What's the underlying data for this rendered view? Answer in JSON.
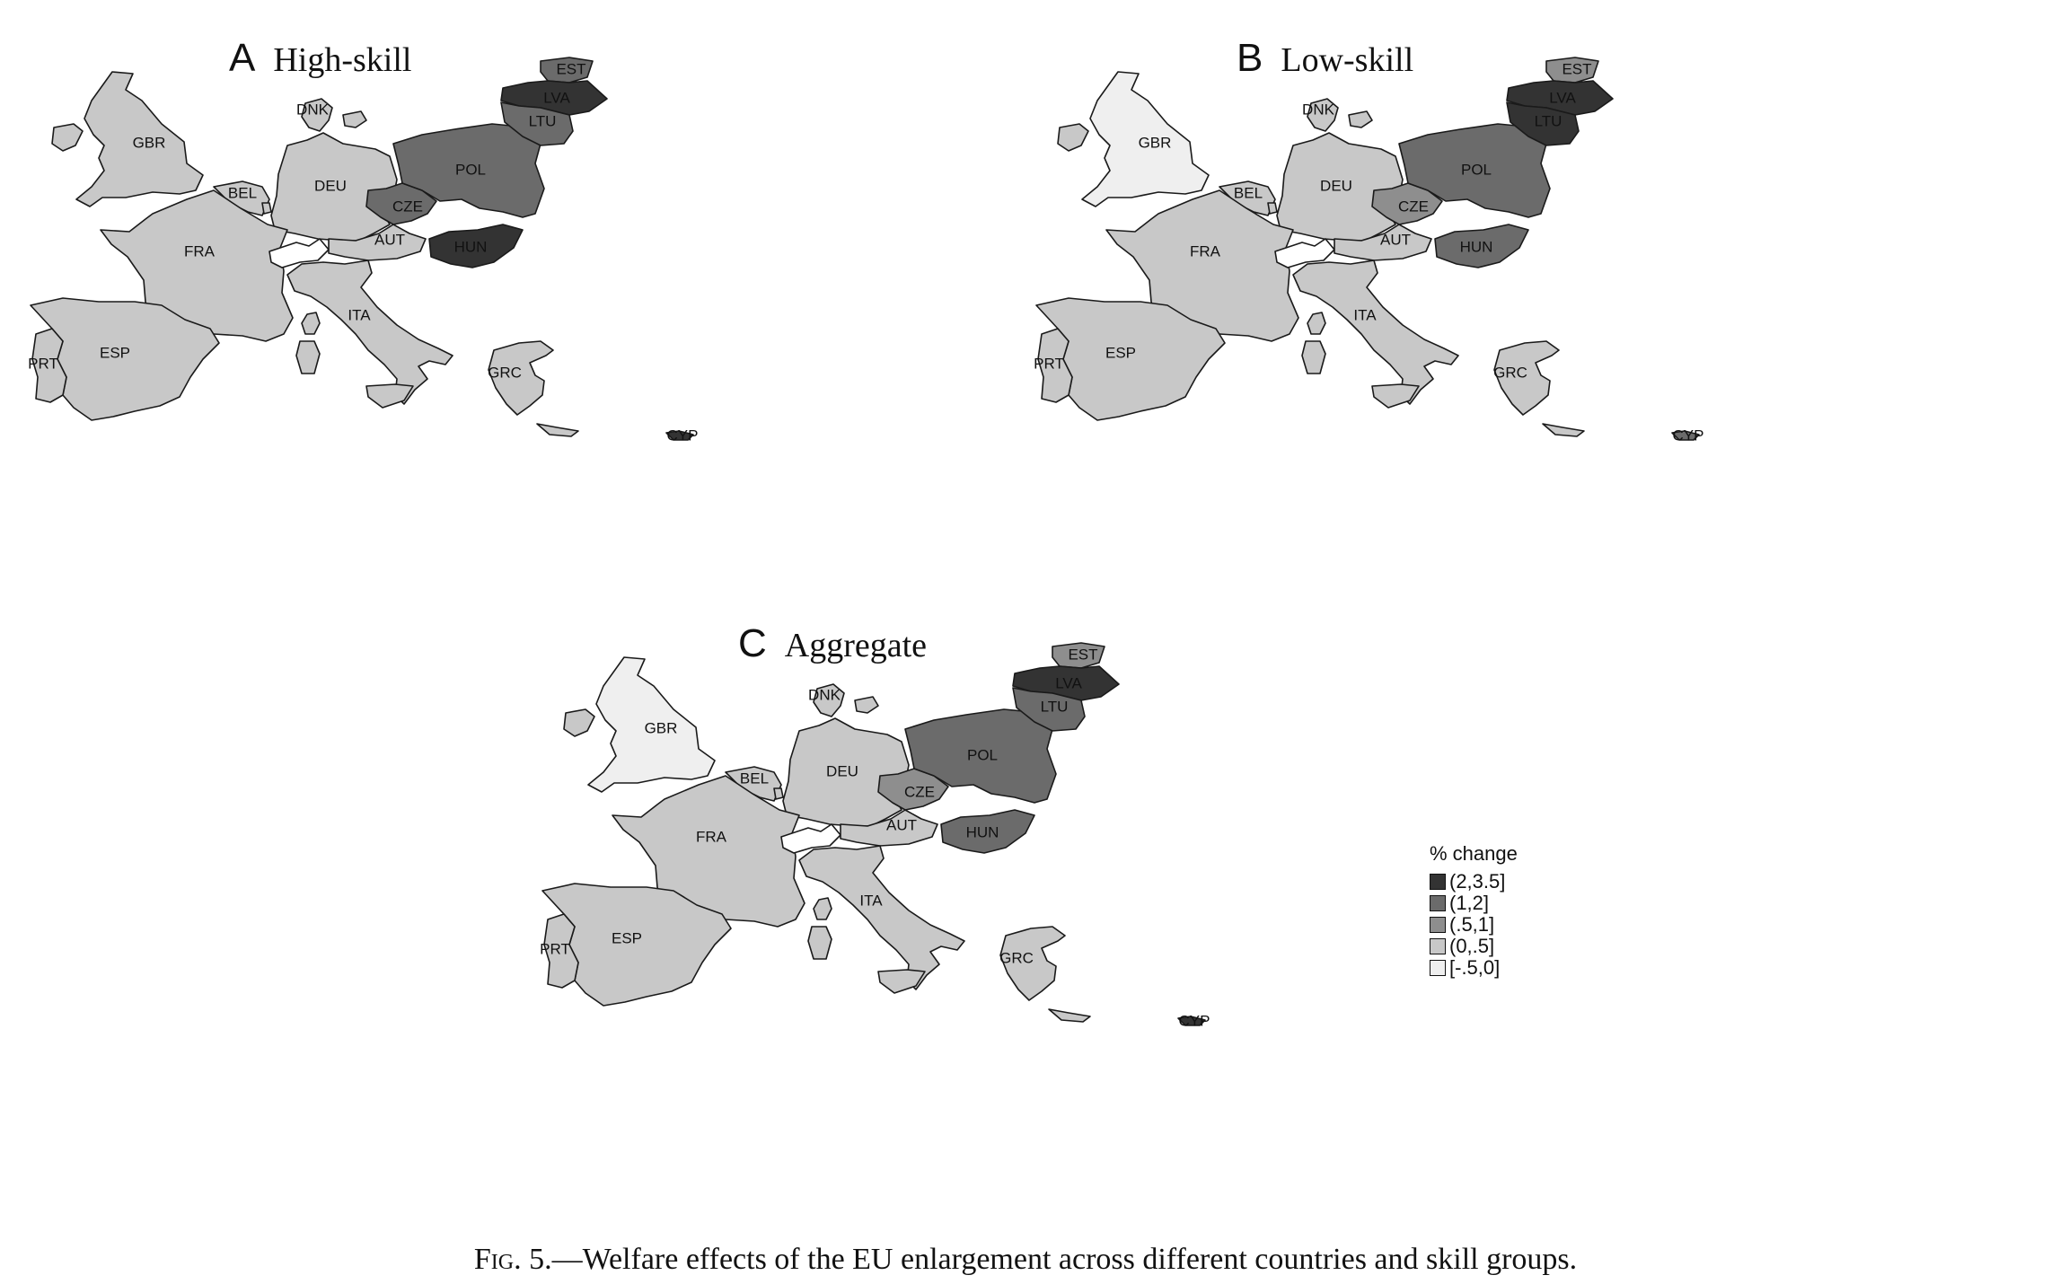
{
  "panels": [
    {
      "id": "A",
      "letter": "A",
      "title": "High-skill",
      "values": {
        "GBR": 4,
        "DNK": 4,
        "DEU": 4,
        "BEL": 4,
        "FRA": 4,
        "ESP": 4,
        "PRT": 4,
        "ITA": 4,
        "AUT": 4,
        "GRC": 4,
        "EST": 2,
        "LVA": 1,
        "LTU": 2,
        "POL": 2,
        "CZE": 2,
        "HUN": 1,
        "CYP": 1
      }
    },
    {
      "id": "B",
      "letter": "B",
      "title": "Low-skill",
      "values": {
        "GBR": 5,
        "DNK": 4,
        "DEU": 4,
        "BEL": 4,
        "FRA": 4,
        "ESP": 4,
        "PRT": 4,
        "ITA": 4,
        "AUT": 4,
        "GRC": 4,
        "EST": 3,
        "LVA": 1,
        "LTU": 1,
        "POL": 2,
        "CZE": 3,
        "HUN": 2,
        "CYP": 2
      }
    },
    {
      "id": "C",
      "letter": "C",
      "title": "Aggregate",
      "values": {
        "GBR": 5,
        "DNK": 4,
        "DEU": 4,
        "BEL": 4,
        "FRA": 4,
        "ESP": 4,
        "PRT": 4,
        "ITA": 4,
        "AUT": 4,
        "GRC": 4,
        "EST": 3,
        "LVA": 1,
        "LTU": 2,
        "POL": 2,
        "CZE": 3,
        "HUN": 2,
        "CYP": 1
      }
    }
  ],
  "country_labels": {
    "GBR": "GBR",
    "DNK": "DNK",
    "DEU": "DEU",
    "BEL": "BEL",
    "FRA": "FRA",
    "ESP": "ESP",
    "PRT": "PRT",
    "ITA": "ITA",
    "AUT": "AUT",
    "GRC": "GRC",
    "EST": "EST",
    "LVA": "LVA",
    "LTU": "LTU",
    "POL": "POL",
    "CZE": "CZE",
    "HUN": "HUN",
    "CYP": "CYP"
  },
  "legend": {
    "title": "% change",
    "classes": [
      {
        "label": "(2,3.5]",
        "color": "#333333"
      },
      {
        "label": "(1,2]",
        "color": "#6b6b6b"
      },
      {
        "label": "(.5,1]",
        "color": "#8e8e8e"
      },
      {
        "label": "(0,.5]",
        "color": "#c8c8c8"
      },
      {
        "label": "[-.5,0]",
        "color": "#efefef"
      }
    ]
  },
  "caption": {
    "fig_label": "Fig. 5.",
    "text": "—Welfare effects of the EU enlargement across different countries and skill groups."
  }
}
